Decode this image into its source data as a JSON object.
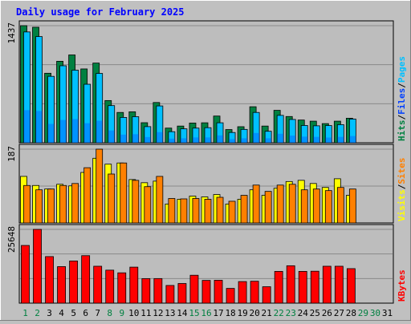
{
  "colors": {
    "background": "#c0c0c0",
    "panel": "#bdbdbd",
    "grid": "#8a8a8a",
    "title": "#0000ff",
    "hits": "#008040",
    "files": "#0040ff",
    "pages": "#00c0ff",
    "visits": "#ffff00",
    "sites": "#ff8000",
    "kbytes": "#ff0000",
    "weekday_label": "#000000",
    "weekend_label": "#008040"
  },
  "chart_data": [
    {
      "type": "bar",
      "title": "Daily usage for February 2025",
      "panel": "hits_files_pages",
      "ymax_label": "1437",
      "ylim": [
        0,
        1437
      ],
      "legend": [
        {
          "name": "Hits",
          "color": "#008040"
        },
        {
          "name": "/",
          "color": "#000000"
        },
        {
          "name": "Files",
          "color": "#0040ff"
        },
        {
          "name": "/",
          "color": "#000000"
        },
        {
          "name": "Pages",
          "color": "#00c0ff"
        }
      ],
      "categories": [
        "1",
        "2",
        "3",
        "4",
        "5",
        "6",
        "7",
        "8",
        "9",
        "10",
        "11",
        "12",
        "13",
        "14",
        "15",
        "16",
        "17",
        "18",
        "19",
        "20",
        "21",
        "22",
        "23",
        "24",
        "25",
        "26",
        "27",
        "28",
        "29",
        "30",
        "31"
      ],
      "series": [
        {
          "name": "Hits",
          "values": [
            1437,
            1418,
            853,
            1000,
            1078,
            906,
            978,
            518,
            372,
            380,
            246,
            494,
            180,
            205,
            242,
            245,
            328,
            162,
            197,
            442,
            205,
            398,
            322,
            279,
            265,
            235,
            265,
            301,
            0,
            0,
            0
          ]
        },
        {
          "name": "Files",
          "values": [
            400,
            390,
            231,
            280,
            290,
            240,
            270,
            150,
            100,
            105,
            70,
            130,
            50,
            55,
            65,
            65,
            90,
            45,
            55,
            120,
            55,
            110,
            88,
            75,
            72,
            64,
            72,
            82,
            0,
            0,
            0
          ]
        },
        {
          "name": "Pages",
          "values": [
            1360,
            1303,
            815,
            945,
            891,
            718,
            851,
            456,
            311,
            320,
            198,
            452,
            136,
            171,
            180,
            185,
            245,
            126,
            164,
            372,
            141,
            336,
            286,
            212,
            208,
            211,
            222,
            291,
            0,
            0,
            0
          ]
        }
      ]
    },
    {
      "type": "bar",
      "panel": "visits_sites",
      "ymax_label": "187",
      "ylim": [
        0,
        187
      ],
      "legend": [
        {
          "name": "Visits",
          "color": "#ffff00"
        },
        {
          "name": "/",
          "color": "#000000"
        },
        {
          "name": "Sites",
          "color": "#ff8000"
        }
      ],
      "categories": [
        "1",
        "2",
        "3",
        "4",
        "5",
        "6",
        "7",
        "8",
        "9",
        "10",
        "11",
        "12",
        "13",
        "14",
        "15",
        "16",
        "17",
        "18",
        "19",
        "20",
        "21",
        "22",
        "23",
        "24",
        "25",
        "26",
        "27",
        "28",
        "29",
        "30",
        "31"
      ],
      "series": [
        {
          "name": "Visits",
          "values": [
            118,
            95,
            86,
            98,
            94,
            128,
            164,
            149,
            152,
            110,
            102,
            106,
            48,
            60,
            68,
            66,
            72,
            48,
            60,
            84,
            70,
            88,
            105,
            108,
            100,
            90,
            112,
            70,
            0,
            0,
            0
          ]
        },
        {
          "name": "Sites",
          "values": [
            95,
            84,
            86,
            95,
            100,
            140,
            187,
            124,
            152,
            108,
            92,
            118,
            62,
            61,
            62,
            60,
            65,
            55,
            70,
            96,
            80,
            96,
            98,
            84,
            86,
            82,
            90,
            86,
            0,
            0,
            0
          ]
        }
      ]
    },
    {
      "type": "bar",
      "panel": "kbytes",
      "ymax_label": "25648",
      "ylim": [
        0,
        25648
      ],
      "legend": [
        {
          "name": "KBytes",
          "color": "#ff0000"
        }
      ],
      "categories": [
        "1",
        "2",
        "3",
        "4",
        "5",
        "6",
        "7",
        "8",
        "9",
        "10",
        "11",
        "12",
        "13",
        "14",
        "15",
        "16",
        "17",
        "18",
        "19",
        "20",
        "21",
        "22",
        "23",
        "24",
        "25",
        "26",
        "27",
        "28",
        "29",
        "30",
        "31"
      ],
      "series": [
        {
          "name": "KBytes",
          "values": [
            20060,
            25648,
            16190,
            12700,
            14660,
            16510,
            12830,
            11470,
            10540,
            12520,
            8520,
            8540,
            6150,
            6830,
            9700,
            7910,
            7960,
            5130,
            7500,
            7620,
            5710,
            11040,
            13000,
            11040,
            11100,
            12830,
            12830,
            12000,
            0,
            0,
            0
          ]
        }
      ]
    }
  ],
  "weekend_days": [
    1,
    2,
    8,
    9,
    15,
    16,
    22,
    23,
    29,
    30
  ]
}
